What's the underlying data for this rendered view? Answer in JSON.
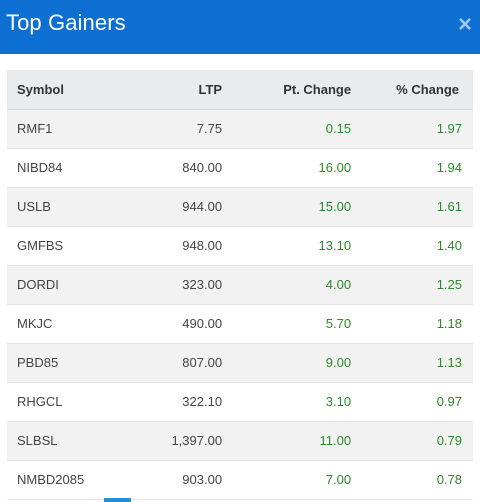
{
  "header": {
    "title": "Top Gainers",
    "close_icon": "close-icon"
  },
  "colors": {
    "header_bg": "#0d6fd1",
    "positive": "#2a8a2a"
  },
  "table": {
    "columns": [
      "Symbol",
      "LTP",
      "Pt. Change",
      "% Change"
    ],
    "rows": [
      [
        "RMF1",
        "7.75",
        "0.15",
        "1.97"
      ],
      [
        "NIBD84",
        "840.00",
        "16.00",
        "1.94"
      ],
      [
        "USLB",
        "944.00",
        "15.00",
        "1.61"
      ],
      [
        "GMFBS",
        "948.00",
        "13.10",
        "1.40"
      ],
      [
        "DORDI",
        "323.00",
        "4.00",
        "1.25"
      ],
      [
        "MKJC",
        "490.00",
        "5.70",
        "1.18"
      ],
      [
        "PBD85",
        "807.00",
        "9.00",
        "1.13"
      ],
      [
        "RHGCL",
        "322.10",
        "3.10",
        "0.97"
      ],
      [
        "SLBSL",
        "1,397.00",
        "11.00",
        "0.79"
      ],
      [
        "NMBD2085",
        "903.00",
        "7.00",
        "0.78"
      ]
    ]
  }
}
